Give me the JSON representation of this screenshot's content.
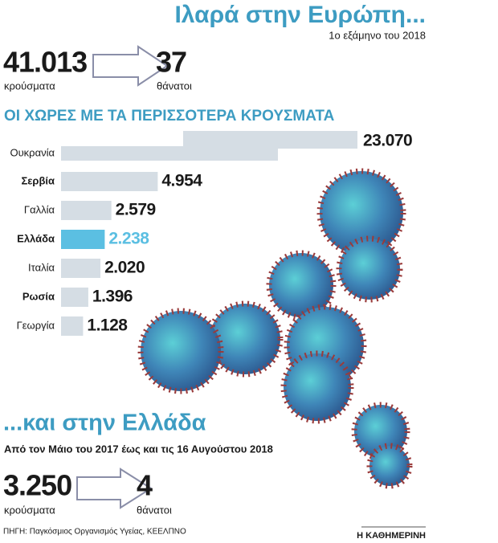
{
  "header": {
    "title": "Ιλαρά στην Ευρώπη...",
    "subtitle": "1ο εξάμηνο του 2018"
  },
  "europe_stats": {
    "cases": "41.013",
    "cases_label": "κρούσματα",
    "deaths": "37",
    "deaths_label": "θάνατοι"
  },
  "chart_data": {
    "type": "bar",
    "orientation": "horizontal",
    "title": "ΟΙ ΧΩΡΕΣ ΜΕ ΤΑ ΠΕΡΙΣΣΟΤΕΡΑ ΚΡΟΥΣΜΑΤΑ",
    "categories": [
      "Ουκρανία",
      "Σερβία",
      "Γαλλία",
      "Ελλάδα",
      "Ιταλία",
      "Ρωσία",
      "Γεωργία"
    ],
    "values": [
      23070,
      4954,
      2579,
      2238,
      2020,
      1396,
      1128
    ],
    "value_labels": [
      "23.070",
      "4.954",
      "2.579",
      "2.238",
      "2.020",
      "1.396",
      "1.128"
    ],
    "colors": [
      "#d5dde4",
      "#d5dde4",
      "#d5dde4",
      "#5bbfe2",
      "#d5dde4",
      "#d5dde4",
      "#d5dde4"
    ]
  },
  "greece": {
    "title": "...και στην Ελλάδα",
    "subtitle": "Από τον Μάιο του 2017 έως και τις 16 Αυγούστου 2018",
    "cases": "3.250",
    "cases_label": "κρούσματα",
    "deaths": "4",
    "deaths_label": "θάνατοι"
  },
  "footer": {
    "source": "ΠΗΓΗ: Παγκόσμιος Οργανισμός Υγείας, ΚΕΕΛΠΝΟ",
    "brand": "Η ΚΑΘΗΜΕΡΙΝΗ"
  }
}
